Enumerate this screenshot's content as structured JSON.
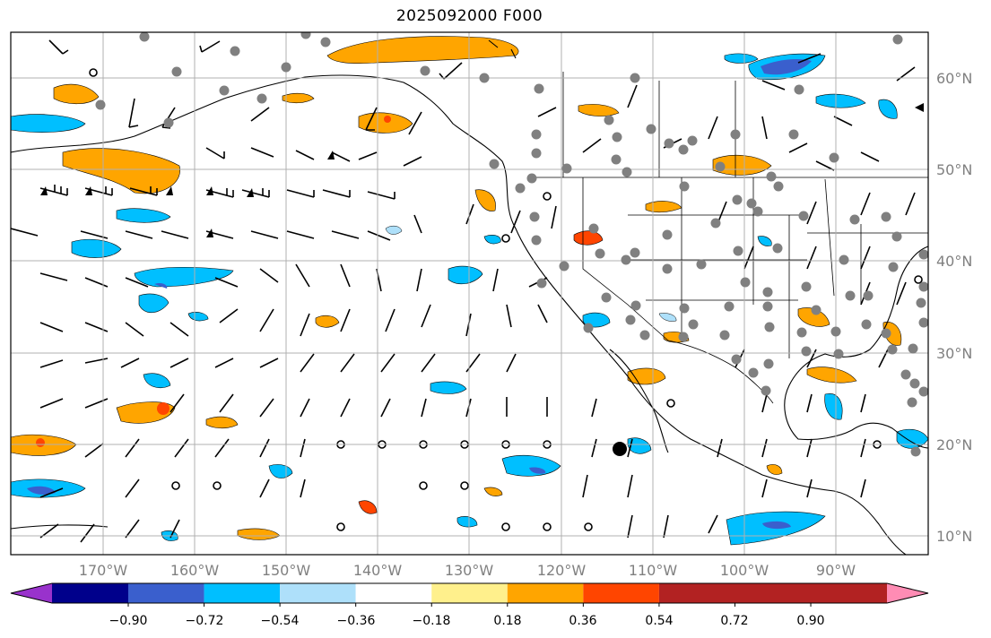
{
  "title": "2025092000 F000",
  "map": {
    "grid": true,
    "lon_labels": [
      "170°W",
      "160°W",
      "150°W",
      "140°W",
      "130°W",
      "120°W",
      "110°W",
      "100°W",
      "90°W"
    ],
    "lat_labels": [
      "60°N",
      "50°N",
      "40°N",
      "30°N",
      "20°N",
      "10°N"
    ],
    "field_colors": {
      "neg_strong": "#3a5fcd",
      "neg_mid": "#1ab0f0",
      "neg_weak": "#aee0fa",
      "pos_weak": "#fff07a",
      "pos_mid": "#ffa500",
      "pos_strong": "#ff4500",
      "marker": "#808080"
    }
  },
  "colorbar": {
    "labels": [
      "−0.90",
      "−0.72",
      "−0.54",
      "−0.36",
      "−0.18",
      "0.18",
      "0.36",
      "0.54",
      "0.72",
      "0.90"
    ],
    "colors": [
      "#9932cc",
      "#00008b",
      "#3a5fcd",
      "#00bfff",
      "#aee0fa",
      "#ffffff",
      "#fff08c",
      "#ffa500",
      "#ff4500",
      "#b22222",
      "#ff8cb4"
    ],
    "extend": "both"
  }
}
